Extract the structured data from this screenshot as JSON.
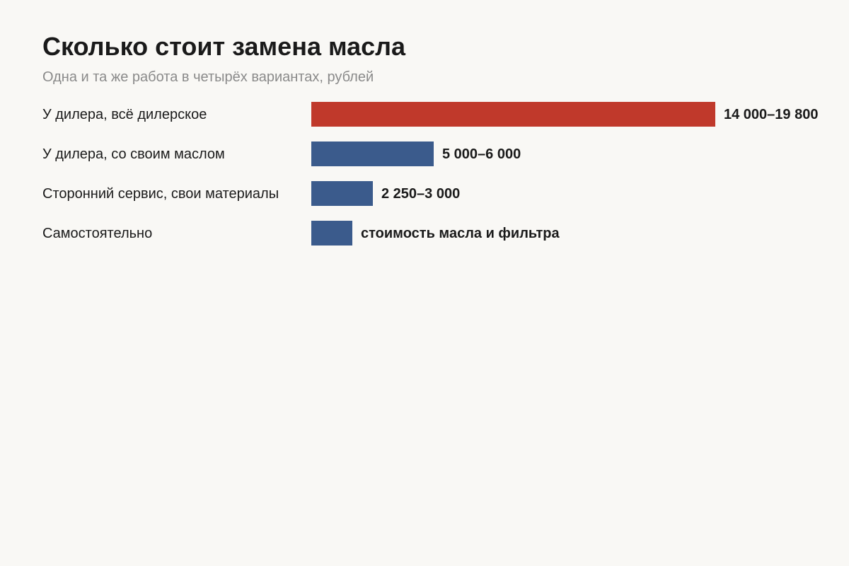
{
  "title": "Сколько стоит замена масла",
  "subtitle": "Одна и та же работа в четырёх вариантах, рублей",
  "colors": {
    "highlight": "#c0392b",
    "default": "#3b5b8c"
  },
  "chart_data": {
    "type": "bar",
    "orientation": "horizontal",
    "title": "Сколько стоит замена масла",
    "subtitle": "Одна и та же работа в четырёх вариантах, рублей",
    "xlabel": "",
    "ylabel": "",
    "grid": false,
    "categories": [
      "У дилера, всё дилерское",
      "У дилера, со своим маслом",
      "Сторонний сервис, свои материалы",
      "Самостоятельно"
    ],
    "values": [
      19800,
      6000,
      3000,
      2000
    ],
    "value_labels": [
      "14 000–19 800",
      "5 000–6 000",
      "2 250–3 000",
      "стоимость масла и фильтра"
    ],
    "bar_colors": [
      "#c0392b",
      "#3b5b8c",
      "#3b5b8c",
      "#3b5b8c"
    ],
    "xlim": [
      0,
      19800
    ]
  }
}
